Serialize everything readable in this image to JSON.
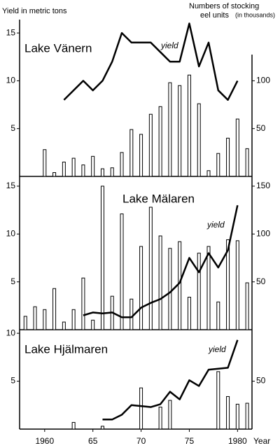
{
  "chart_data": [
    {
      "type": "combo",
      "title": "Lake Vänern",
      "annotation": "yield",
      "y_label": "Yield in metric tons",
      "y2_label": [
        "Numbers of stocking",
        "eel units",
        "(in thousands)"
      ],
      "color": "#000000",
      "xlim": [
        1957.4,
        1981.5
      ],
      "ylim": [
        0,
        16.4
      ],
      "yticks": [
        5,
        10,
        15
      ],
      "y2lim": [
        0,
        164
      ],
      "y2ticks": [
        50,
        100
      ],
      "bars": {
        "axis": "y2",
        "x": [
          1960,
          1961,
          1962,
          1963,
          1964,
          1965,
          1966,
          1967,
          1968,
          1969,
          1970,
          1971,
          1972,
          1973,
          1974,
          1975,
          1976,
          1977,
          1978,
          1979,
          1980,
          1981
        ],
        "values": [
          28,
          4,
          15,
          19,
          12,
          21,
          8,
          9,
          25,
          49,
          44,
          65,
          73,
          98,
          95,
          106,
          76,
          6,
          24,
          40,
          60,
          29
        ]
      },
      "line": {
        "x": [
          1962,
          1964,
          1965,
          1966,
          1967,
          1968,
          1969,
          1970,
          1971,
          1972,
          1973,
          1974,
          1975,
          1976,
          1977,
          1978,
          1979,
          1980
        ],
        "values": [
          8,
          10,
          9,
          10,
          12,
          15,
          14,
          14,
          14,
          13,
          12,
          12,
          16,
          11.5,
          14,
          9,
          8,
          10
        ]
      }
    },
    {
      "type": "combo",
      "title": "Lake Mälaren",
      "annotation": "yield",
      "color": "#000000",
      "xlim": [
        1957.4,
        1981.5
      ],
      "ylim": [
        0,
        15.8
      ],
      "yticks": [
        5,
        10,
        15
      ],
      "y2lim": [
        0,
        158
      ],
      "y2ticks": [
        50,
        100,
        150
      ],
      "bars": {
        "axis": "y2",
        "x": [
          1958,
          1959,
          1960,
          1961,
          1962,
          1963,
          1964,
          1965,
          1966,
          1967,
          1968,
          1969,
          1970,
          1971,
          1972,
          1973,
          1974,
          1975,
          1976,
          1977,
          1978,
          1979,
          1980,
          1981
        ],
        "values": [
          14,
          24,
          21,
          43,
          8,
          21,
          54,
          10,
          150,
          35,
          121,
          32,
          87,
          128,
          98,
          85,
          92,
          34,
          80,
          87,
          29,
          94,
          93,
          49
        ]
      },
      "line": {
        "x": [
          1964,
          1965,
          1966,
          1967,
          1968,
          1969,
          1970,
          1971,
          1972,
          1973,
          1974,
          1975,
          1976,
          1977,
          1978,
          1979,
          1980
        ],
        "values": [
          1.5,
          1.8,
          1.7,
          1.8,
          1.3,
          1.3,
          2.3,
          2.8,
          3.2,
          3.9,
          4.9,
          7.5,
          6.0,
          8.0,
          6.5,
          8.3,
          13.0
        ]
      }
    },
    {
      "type": "combo",
      "title": "Lake Hjälmaren",
      "annotation": "yield",
      "color": "#000000",
      "xlim": [
        1957.4,
        1981.5
      ],
      "xlabel": "Year",
      "xticks": [
        1960,
        {
          "value": 1965,
          "label": "65"
        },
        {
          "value": 1970,
          "label": "70"
        },
        {
          "value": 1975,
          "label": "75"
        },
        1980
      ],
      "ylim": [
        0,
        10.3
      ],
      "yticks": [
        5,
        10
      ],
      "y2lim": [
        0,
        103
      ],
      "y2ticks": [
        50
      ],
      "bars": {
        "axis": "y2",
        "x": [
          1963,
          1966,
          1970,
          1972,
          1973,
          1978,
          1979,
          1980,
          1981
        ],
        "values": [
          7,
          3,
          43,
          23,
          30,
          60,
          34,
          26,
          27
        ]
      },
      "line": {
        "x": [
          1966,
          1967,
          1968,
          1969,
          1970,
          1971,
          1972,
          1973,
          1974,
          1975,
          1976,
          1977,
          1978,
          1979,
          1980
        ],
        "values": [
          1,
          1,
          1.5,
          2.5,
          2.4,
          2.3,
          2.6,
          3.9,
          3.1,
          5.1,
          4.5,
          6.2,
          6.3,
          6.4,
          9.3
        ]
      }
    }
  ]
}
